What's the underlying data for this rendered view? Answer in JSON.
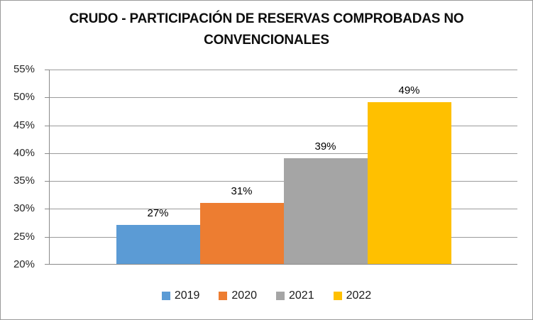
{
  "chart": {
    "title_lines": [
      "CRUDO - PARTICIPACIÓN DE RESERVAS COMPROBADAS NO",
      "CONVENCIONALES"
    ]
  },
  "chart_data": {
    "type": "bar",
    "title": "CRUDO - PARTICIPACIÓN DE RESERVAS COMPROBADAS NO CONVENCIONALES",
    "categories": [
      "2019",
      "2020",
      "2021",
      "2022"
    ],
    "series": [
      {
        "name": "2019",
        "value": 27,
        "label": "27%",
        "color": "#5B9BD5"
      },
      {
        "name": "2020",
        "value": 31,
        "label": "31%",
        "color": "#ED7D31"
      },
      {
        "name": "2021",
        "value": 39,
        "label": "39%",
        "color": "#A5A5A5"
      },
      {
        "name": "2022",
        "value": 49,
        "label": "49%",
        "color": "#FFC000"
      }
    ],
    "xlabel": "",
    "ylabel": "",
    "ylim": [
      20,
      55
    ],
    "ytick_step": 5,
    "yticks": [
      "55%",
      "50%",
      "45%",
      "40%",
      "35%",
      "30%",
      "25%",
      "20%"
    ],
    "grid": true,
    "legend_position": "bottom",
    "colors": {
      "grid": "#9b9b9b",
      "axis": "#8a8a8a",
      "text": "#262626",
      "title": "#0d0d0d"
    }
  }
}
